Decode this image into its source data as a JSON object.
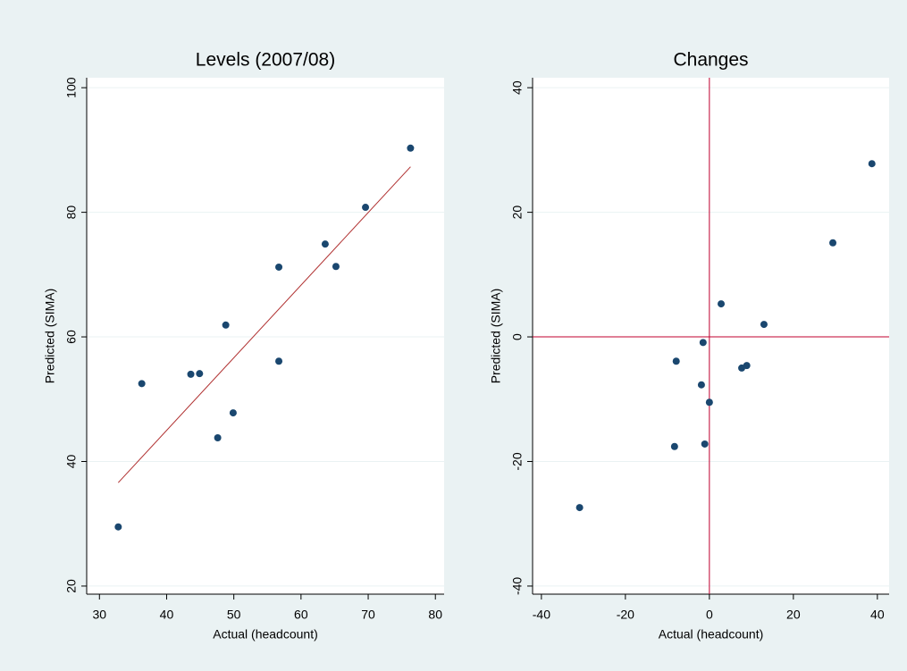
{
  "chart_data": [
    {
      "type": "scatter",
      "title": "Levels (2007/08)",
      "x_label": "Actual (headcount)",
      "y_label": "Predicted (SIMA)",
      "x": [
        32.8,
        36.3,
        43.6,
        44.9,
        47.6,
        48.8,
        49.9,
        56.7,
        56.7,
        63.6,
        65.2,
        69.6,
        76.3
      ],
      "values": [
        29.5,
        52.5,
        54.0,
        54.1,
        43.8,
        61.9,
        47.8,
        71.2,
        56.1,
        74.9,
        71.3,
        80.8,
        90.3
      ],
      "color": "#1a476f",
      "fit": {
        "x": [
          32.8,
          76.3
        ],
        "values": [
          36.6,
          87.3
        ],
        "color": "#b03030"
      },
      "xlim": [
        28.1,
        81.3
      ],
      "ylim": [
        18.7,
        101.6
      ],
      "xticks": [
        30,
        40,
        50,
        60,
        70,
        80
      ],
      "yticks": [
        20,
        40,
        60,
        80,
        100
      ],
      "grid": true
    },
    {
      "type": "scatter",
      "title": "Changes",
      "x_label": "Actual (headcount)",
      "y_label": "Predicted (SIMA)",
      "x": [
        -30.9,
        -8.3,
        -7.9,
        -1.9,
        -1.5,
        -1.1,
        0,
        2.8,
        7.7,
        8.9,
        13.0,
        29.4,
        38.7
      ],
      "values": [
        -27.4,
        -17.6,
        -3.9,
        -7.7,
        -0.9,
        -17.2,
        -10.5,
        5.3,
        -5.0,
        -4.6,
        2.0,
        15.1,
        27.8
      ],
      "color": "#1a476f",
      "xline": 0,
      "yline": 0,
      "refline_color": "#c0002f",
      "xlim": [
        -42.1,
        42.8
      ],
      "ylim": [
        -41.3,
        41.6
      ],
      "xticks": [
        -40,
        -20,
        0,
        20,
        40
      ],
      "yticks": [
        -40,
        -20,
        0,
        20,
        40
      ],
      "grid": true
    }
  ]
}
